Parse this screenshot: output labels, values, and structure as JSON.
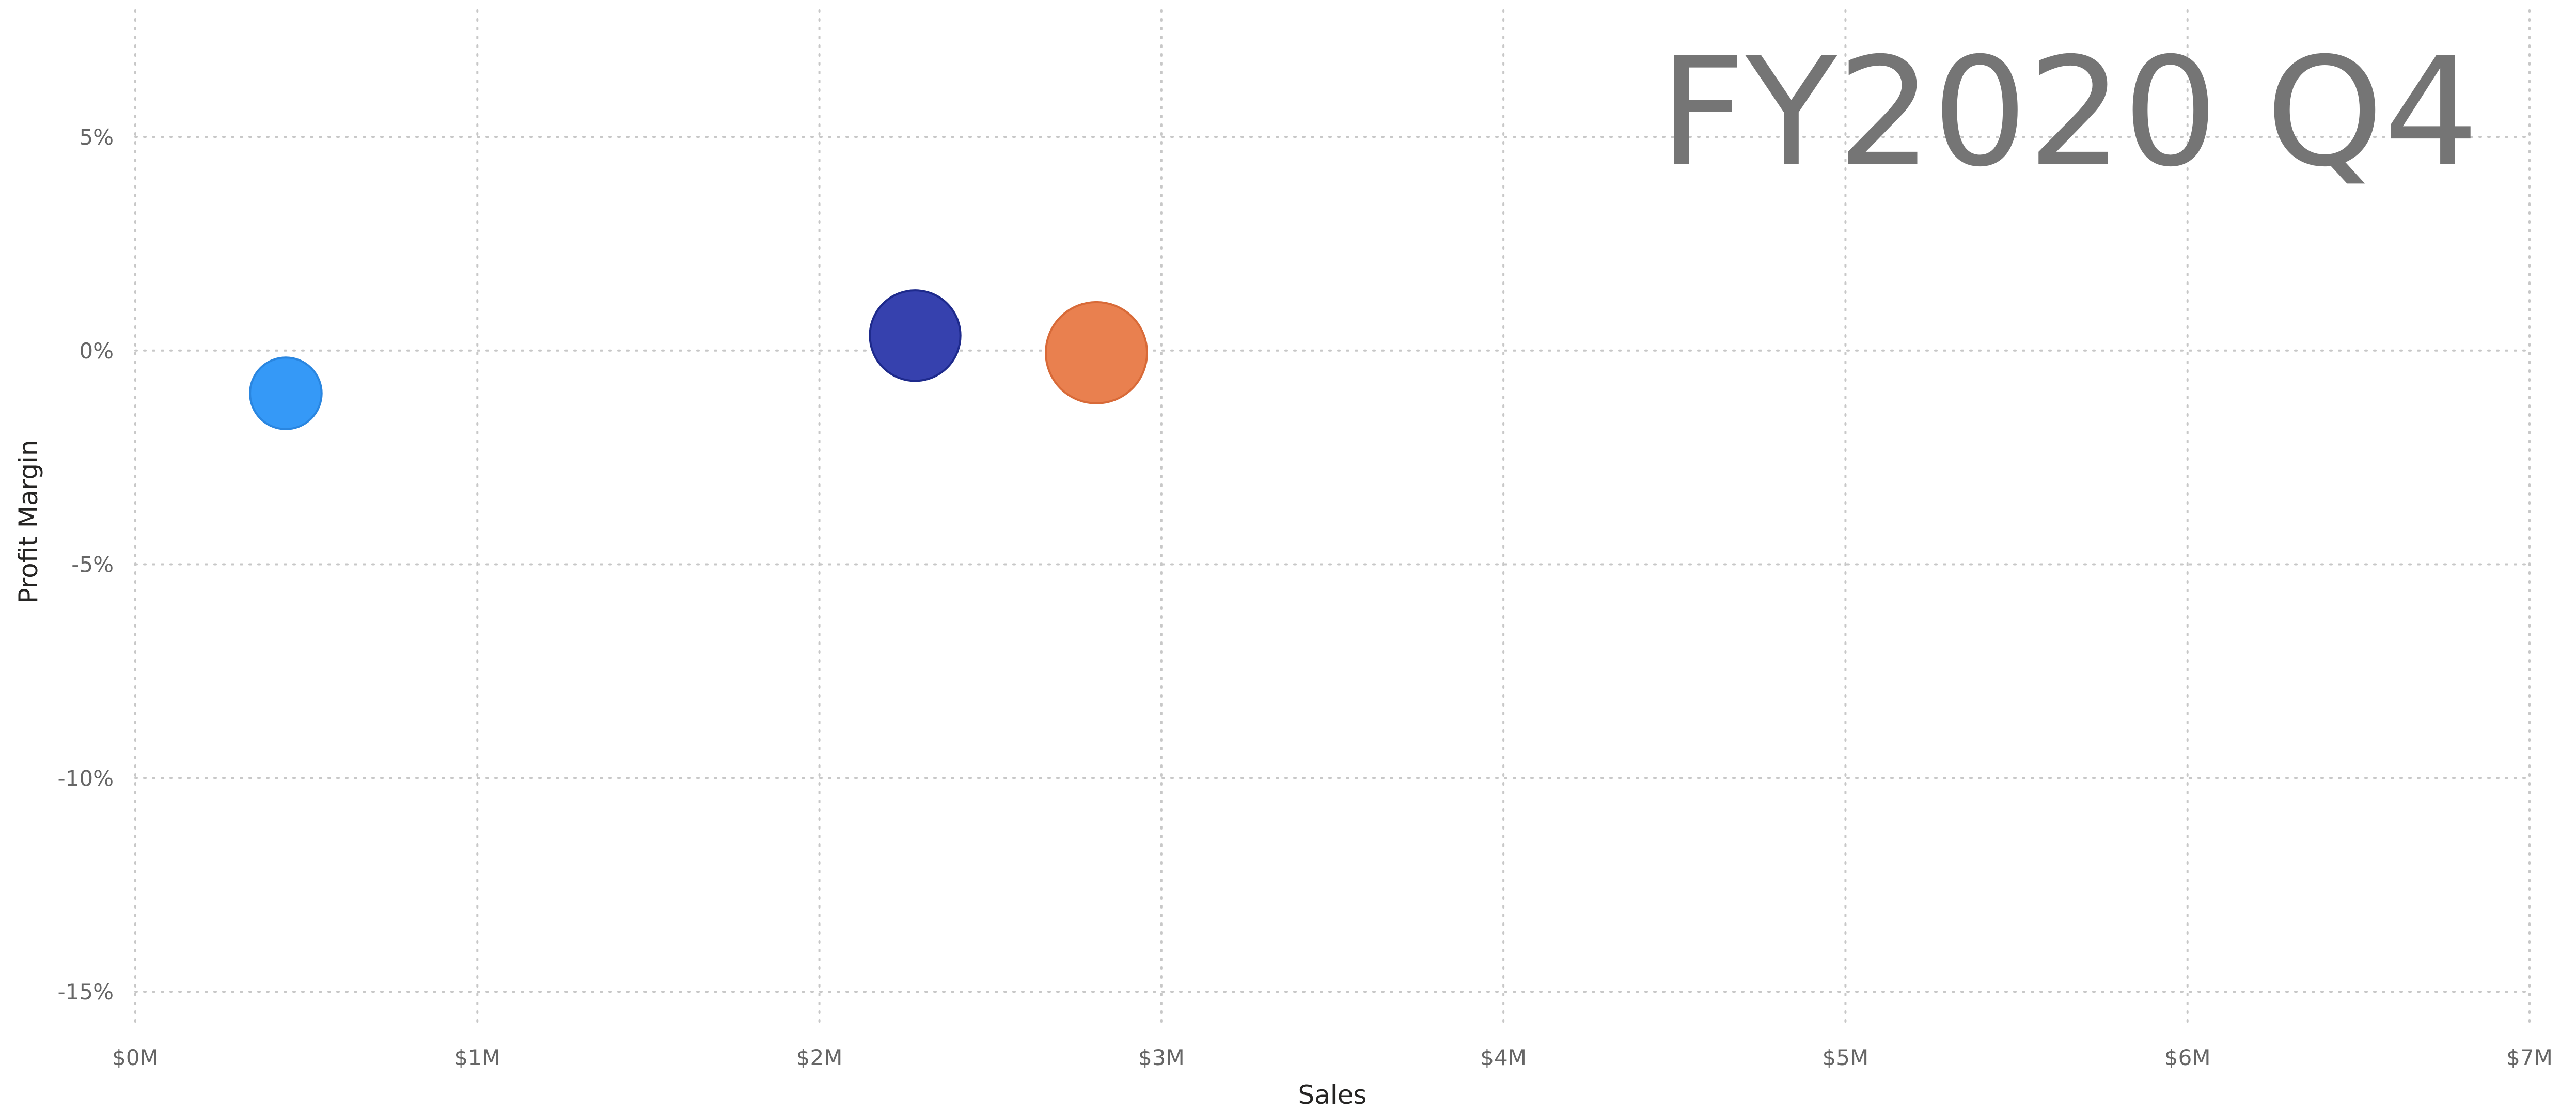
{
  "chart_data": {
    "type": "scatter",
    "title": "",
    "play_axis_label": "FY2020 Q4",
    "xlabel": "Sales",
    "ylabel": "Profit Margin",
    "xlim": [
      0,
      7000000
    ],
    "ylim": [
      -16,
      8
    ],
    "x_ticks": [
      {
        "value": 0,
        "label": "$0M"
      },
      {
        "value": 1000000,
        "label": "$1M"
      },
      {
        "value": 2000000,
        "label": "$2M"
      },
      {
        "value": 3000000,
        "label": "$3M"
      },
      {
        "value": 4000000,
        "label": "$4M"
      },
      {
        "value": 5000000,
        "label": "$5M"
      },
      {
        "value": 6000000,
        "label": "$6M"
      },
      {
        "value": 7000000,
        "label": "$7M"
      }
    ],
    "y_ticks": [
      {
        "value": 5,
        "label": "5%"
      },
      {
        "value": 0,
        "label": "0%"
      },
      {
        "value": -5,
        "label": "-5%"
      },
      {
        "value": -10,
        "label": "-10%"
      },
      {
        "value": -15,
        "label": "-15%"
      }
    ],
    "grid": true,
    "legend": "none",
    "points": [
      {
        "x": 440000,
        "y": -1.0,
        "size": 0.5,
        "color": "#3599F7",
        "stroke": "#2A86E0"
      },
      {
        "x": 2280000,
        "y": 0.35,
        "size": 0.8,
        "color": "#3641AE",
        "stroke": "#1E2A8C"
      },
      {
        "x": 2810000,
        "y": -0.05,
        "size": 1.0,
        "color": "#E9804F",
        "stroke": "#D86A38"
      }
    ]
  }
}
